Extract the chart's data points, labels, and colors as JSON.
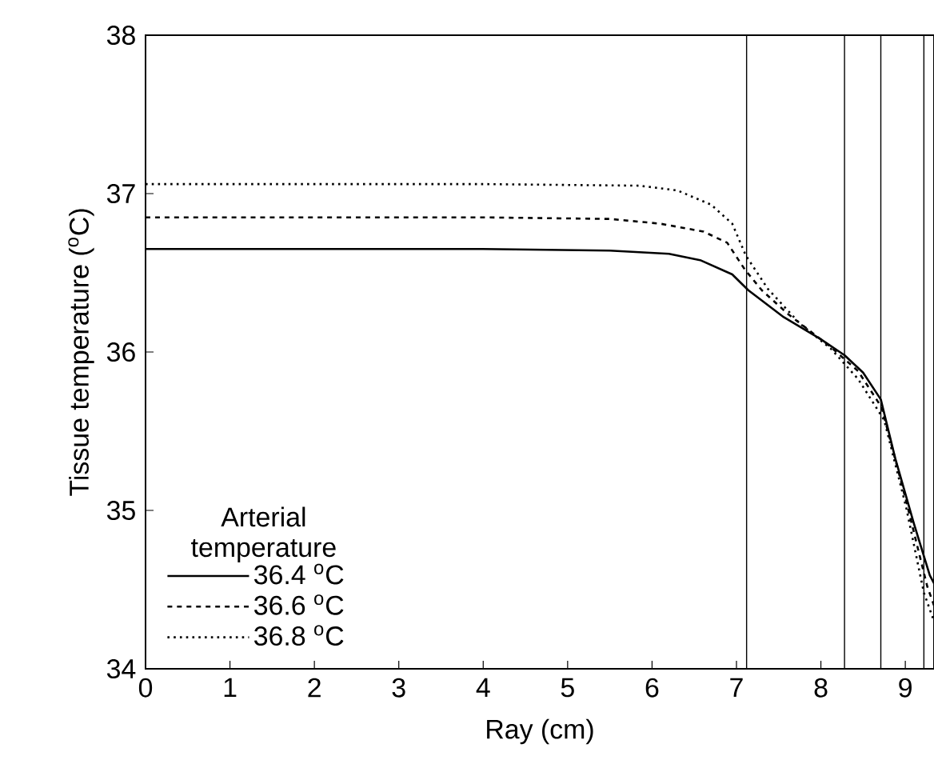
{
  "chart_data": {
    "type": "line",
    "xlabel": "Ray (cm)",
    "ylabel": "Tissue temperature ($^{o}$C)",
    "legend_title": "Arterial temperature",
    "legend": "bottom left",
    "grid": false,
    "xlim": [
      0,
      9.34
    ],
    "ylim": [
      34,
      38
    ],
    "xticks": [
      0,
      1,
      2,
      3,
      4,
      5,
      6,
      7,
      8,
      9
    ],
    "yticks": [
      34,
      35,
      36,
      37,
      38
    ],
    "series": [
      {
        "name": "36.4 $^{o}$C",
        "color": "#000000",
        "line_style": "solid",
        "x": [
          0,
          2,
          4,
          5.5,
          6.2,
          6.57,
          6.95,
          7.14,
          7.56,
          8.0,
          8.28,
          8.5,
          8.71,
          8.88,
          9.1,
          9.29,
          9.34
        ],
        "values": [
          36.65,
          36.65,
          36.65,
          36.64,
          36.62,
          36.58,
          36.49,
          36.39,
          36.22,
          36.08,
          35.98,
          35.87,
          35.7,
          35.33,
          34.92,
          34.59,
          34.54
        ]
      },
      {
        "name": "36.6 $^{o}$C",
        "color": "#000000",
        "line_style": "dashed",
        "x": [
          0,
          2,
          4,
          5.5,
          6.1,
          6.61,
          6.89,
          7.1,
          7.3,
          7.61,
          8.12,
          8.44,
          8.72,
          9.01,
          9.26,
          9.34
        ],
        "values": [
          36.85,
          36.85,
          36.85,
          36.84,
          36.81,
          36.76,
          36.69,
          36.52,
          36.39,
          36.24,
          36.03,
          35.88,
          35.65,
          35.06,
          34.52,
          34.4
        ]
      },
      {
        "name": "36.8 $^{o}$C",
        "color": "#000000",
        "line_style": "dotted",
        "x": [
          0,
          2,
          4,
          5.85,
          6.3,
          6.7,
          6.95,
          7.11,
          7.37,
          7.75,
          8.12,
          8.44,
          8.75,
          9.01,
          9.22,
          9.34
        ],
        "values": [
          37.06,
          37.06,
          37.06,
          37.05,
          37.02,
          36.93,
          36.81,
          36.61,
          36.4,
          36.18,
          36.02,
          35.83,
          35.57,
          35.02,
          34.48,
          34.3
        ]
      }
    ],
    "ref_lines": [
      {
        "axis": "x",
        "value": 7.12,
        "color": "#000000",
        "line_style": "solid"
      },
      {
        "axis": "x",
        "value": 8.28,
        "color": "#000000",
        "line_style": "solid"
      },
      {
        "axis": "x",
        "value": 8.71,
        "color": "#000000",
        "line_style": "solid"
      },
      {
        "axis": "x",
        "value": 9.22,
        "color": "#000000",
        "line_style": "solid"
      }
    ]
  }
}
